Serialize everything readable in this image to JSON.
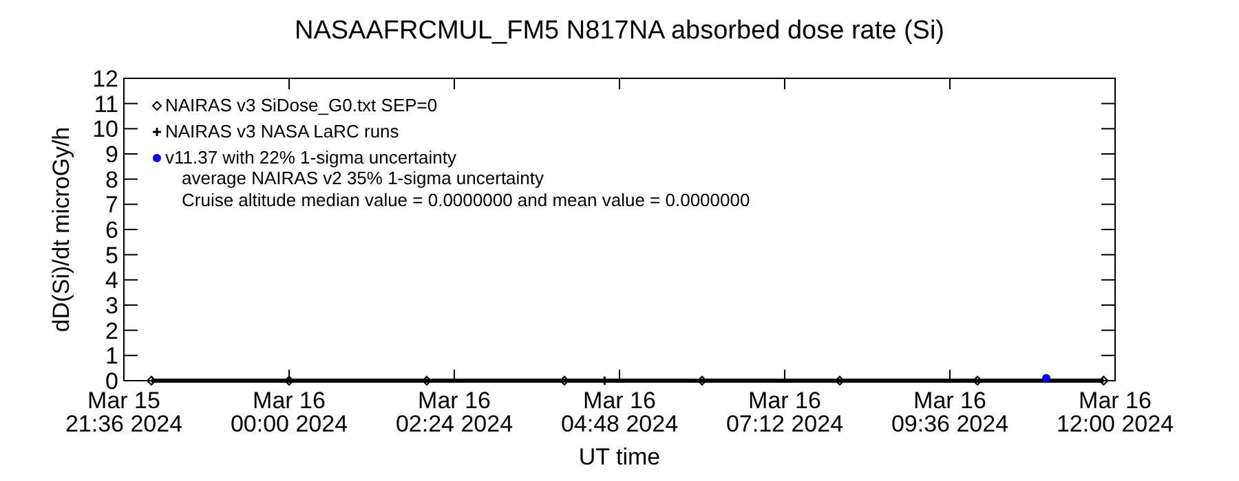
{
  "chart_data": {
    "type": "line",
    "title": "NASAAFRCMUL_FM5   N817NA absorbed dose rate (Si)",
    "xlabel": "UT time",
    "ylabel": "dD(Si)/dt microGy/h",
    "xlim": [
      "2024-03-15T21:36",
      "2024-03-16T12:00"
    ],
    "xticks": [
      {
        "value": "2024-03-15T21:36",
        "label": "Mar 15\n21:36 2024"
      },
      {
        "value": "2024-03-16T00:00",
        "label": "Mar 16\n00:00 2024"
      },
      {
        "value": "2024-03-16T02:24",
        "label": "Mar 16\n02:24 2024"
      },
      {
        "value": "2024-03-16T04:48",
        "label": "Mar 16\n04:48 2024"
      },
      {
        "value": "2024-03-16T07:12",
        "label": "Mar 16\n07:12 2024"
      },
      {
        "value": "2024-03-16T09:36",
        "label": "Mar 16\n09:36 2024"
      },
      {
        "value": "2024-03-16T12:00",
        "label": "Mar 16\n12:00 2024"
      }
    ],
    "ylim": [
      0,
      12
    ],
    "yticks": [
      0,
      1,
      2,
      3,
      4,
      5,
      6,
      7,
      8,
      9,
      10,
      11,
      12
    ],
    "grid": false,
    "legend": "top left",
    "series": [
      {
        "name": "NAIRAS v3 SiDose_G0.txt SEP=0",
        "marker": "diamond",
        "color": "#000000",
        "x": [
          "2024-03-15T22:00",
          "2024-03-16T00:00",
          "2024-03-16T02:00",
          "2024-03-16T04:00",
          "2024-03-16T06:00",
          "2024-03-16T08:00",
          "2024-03-16T10:00",
          "2024-03-16T11:50"
        ],
        "values": [
          0,
          0,
          0,
          0,
          0,
          0,
          0,
          0
        ]
      },
      {
        "name": "NAIRAS v3 NASA LaRC runs",
        "type": "scatter",
        "marker": "cross",
        "color": "#000000",
        "x": [
          "2024-03-16T04:35"
        ],
        "values": [
          0
        ]
      },
      {
        "name": "v11.37 with 22% 1-sigma uncertainty",
        "type": "scatter",
        "marker": "circle",
        "color": "#0000ff",
        "x": [
          "2024-03-16T11:00"
        ],
        "values": [
          0.1
        ]
      }
    ],
    "annotations": [
      "average NAIRAS v2 35% 1-sigma uncertainty",
      "Cruise altitude median value = 0.0000000 and mean value = 0.0000000"
    ]
  }
}
